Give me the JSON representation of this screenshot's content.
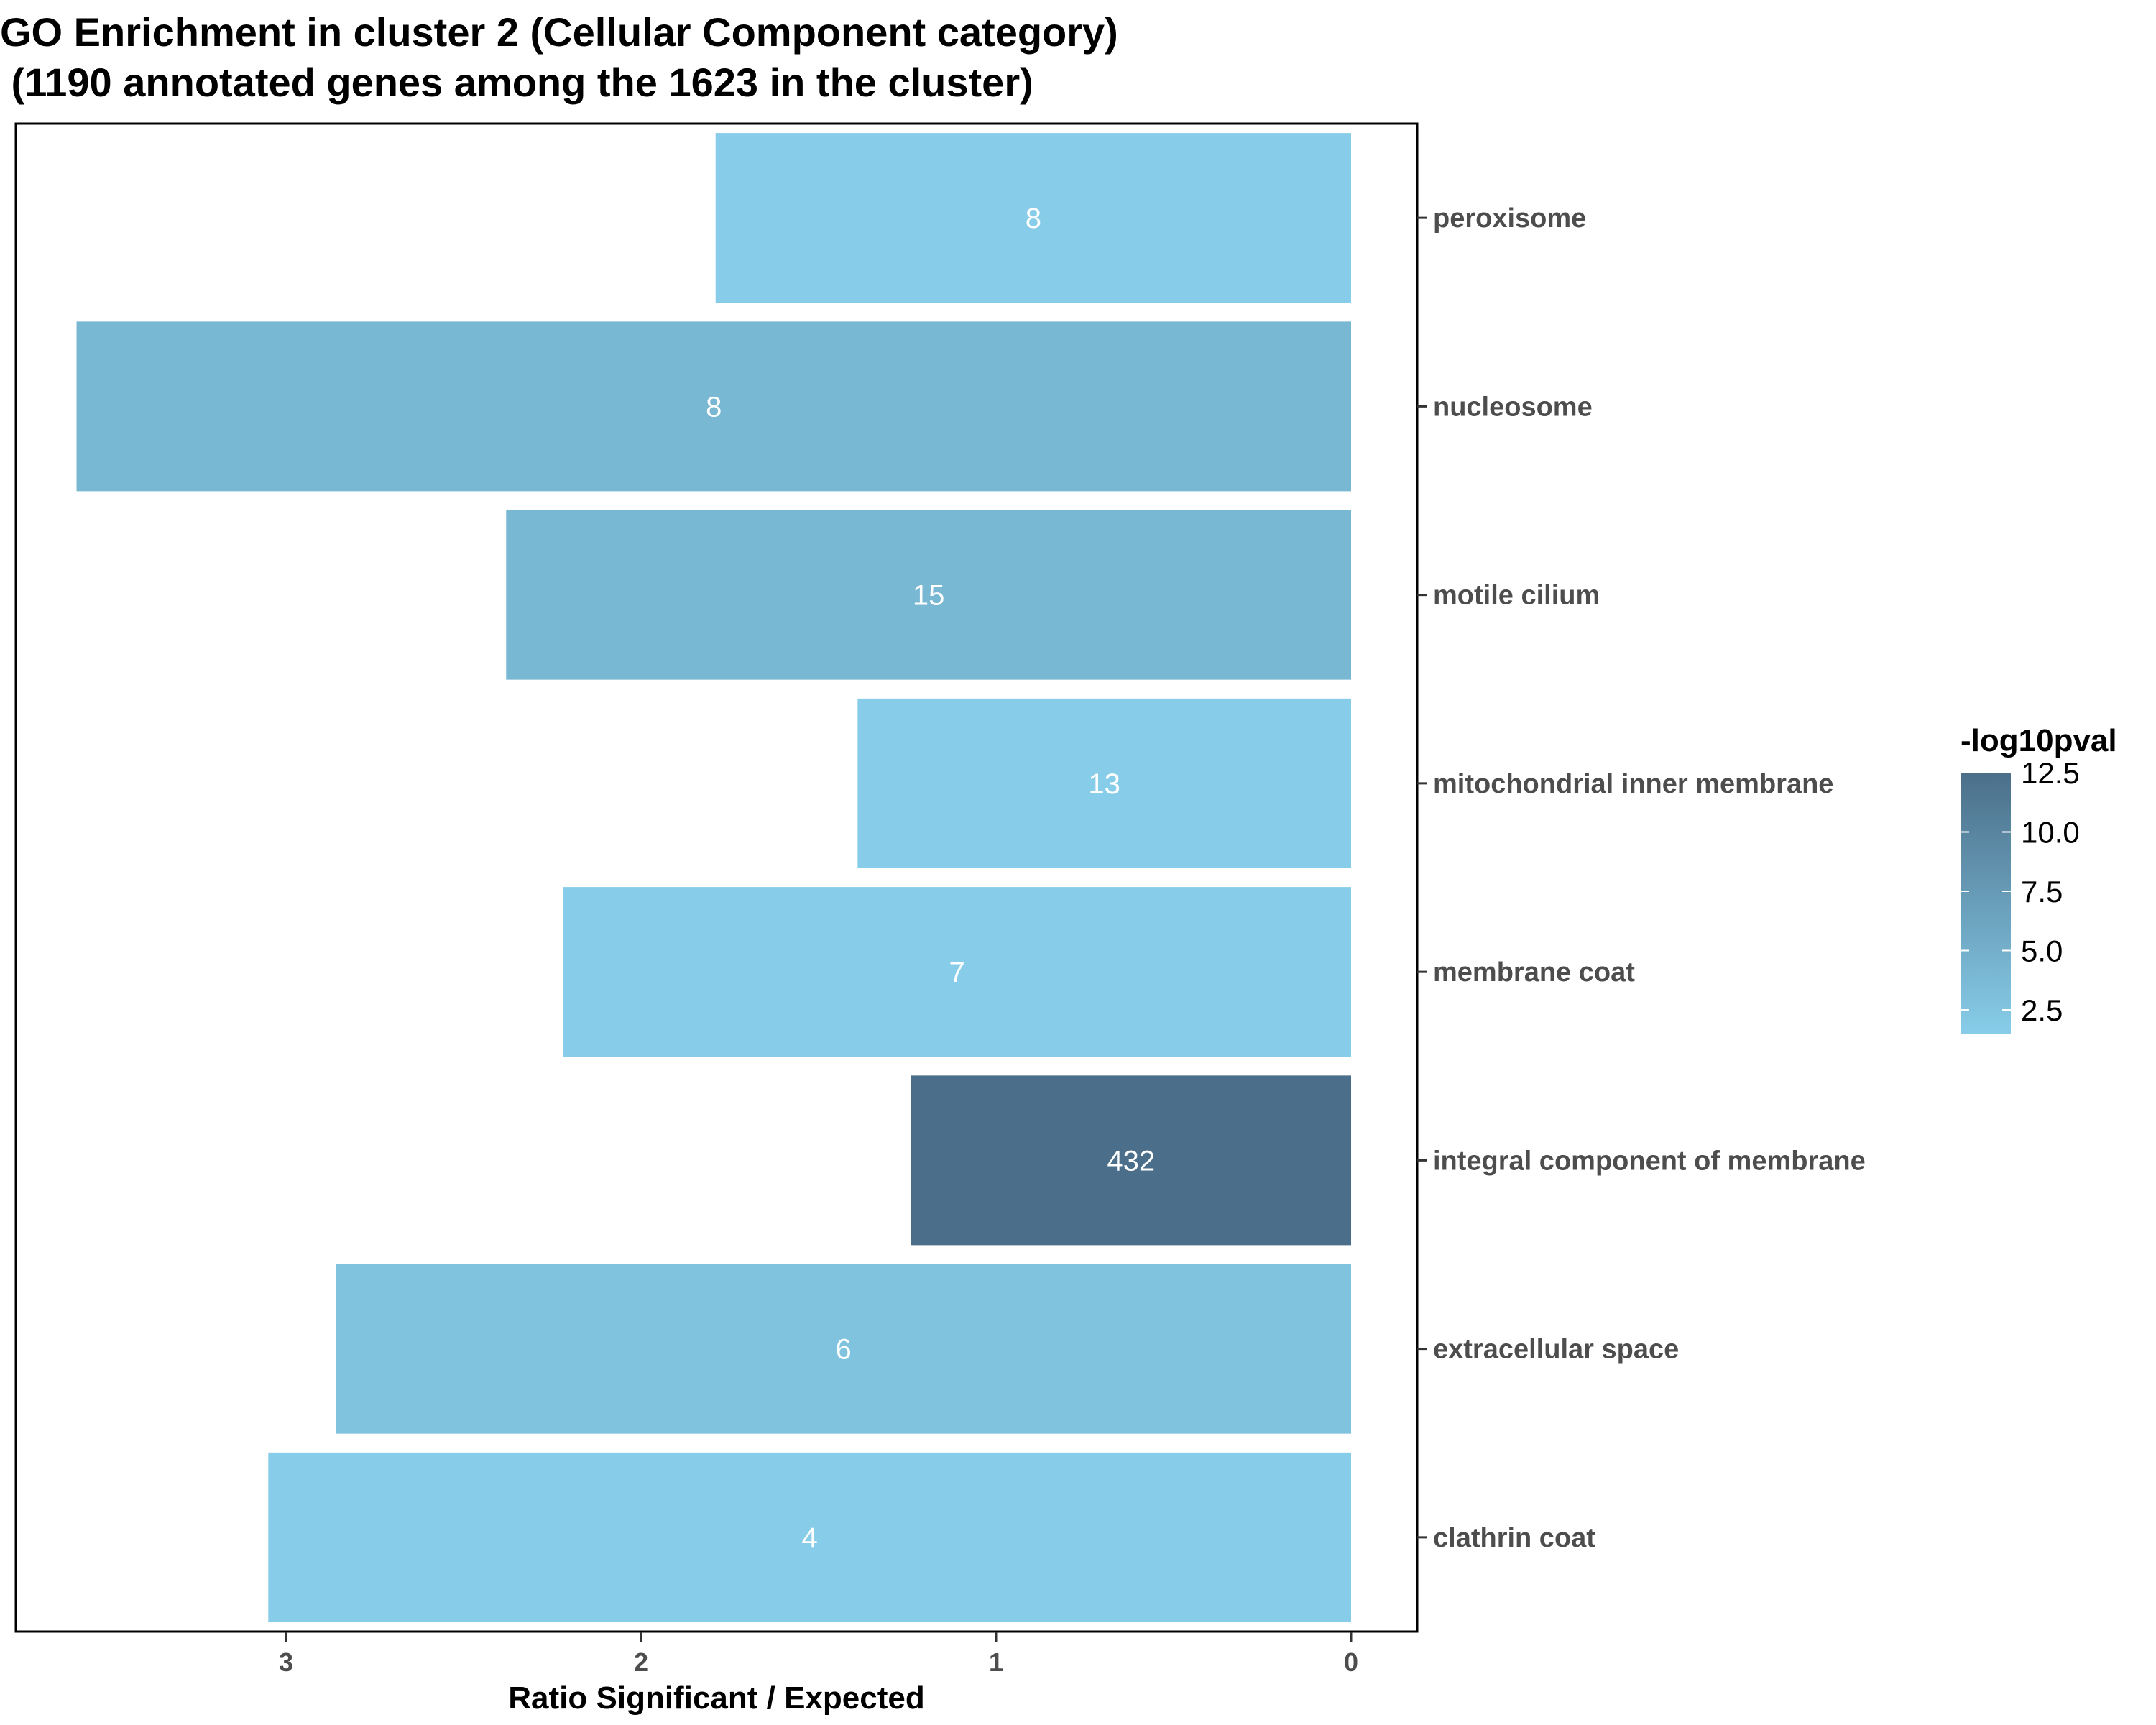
{
  "chart_data": {
    "type": "bar",
    "orientation": "horizontal",
    "x_reversed": true,
    "title_line1": "GO Enrichment in cluster 2 (Cellular Component category)",
    "title_line2": " (1190 annotated genes among the 1623 in the cluster)",
    "xlabel": "Ratio Significant / Expected",
    "ylabel": "",
    "xlim": [
      0,
      3.75
    ],
    "xticks": [
      3,
      2,
      1,
      0
    ],
    "grid": false,
    "categories": [
      "peroxisome",
      "nucleosome",
      "motile cilium",
      "mitochondrial inner membrane",
      "membrane coat",
      "integral component of membrane",
      "extracellular space",
      "clathrin coat"
    ],
    "values": [
      1.79,
      3.59,
      2.38,
      1.39,
      2.22,
      1.24,
      2.86,
      3.05
    ],
    "bar_labels": [
      "8",
      "8",
      "15",
      "13",
      "7",
      "432",
      "6",
      "4"
    ],
    "color_values": [
      1.5,
      4.0,
      4.0,
      1.5,
      1.5,
      12.5,
      2.7,
      1.5
    ],
    "legend": {
      "title": "-log10pval",
      "position": "right",
      "ticks": [
        "12.5",
        "10.0",
        "7.5",
        "5.0",
        "2.5"
      ],
      "tick_values": [
        12.5,
        10.0,
        7.5,
        5.0,
        2.5
      ],
      "min": 1.5,
      "max": 12.5,
      "color_low": "#87CDE9",
      "color_high": "#4B6F8A"
    }
  }
}
